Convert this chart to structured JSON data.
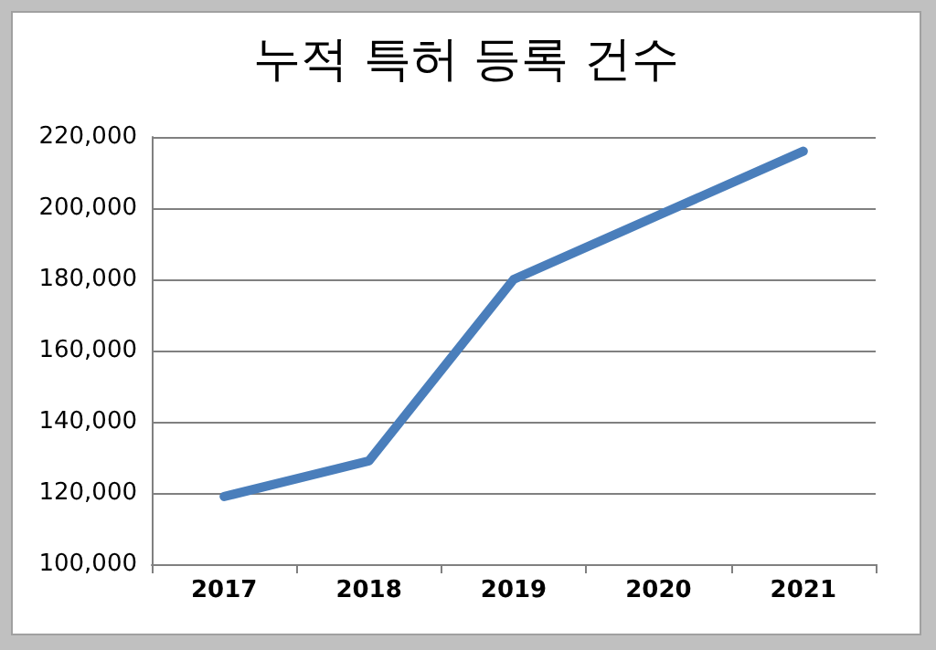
{
  "chart_data": {
    "type": "line",
    "title": "누적 특허 등록 건수",
    "categories": [
      "2017",
      "2018",
      "2019",
      "2020",
      "2021"
    ],
    "series": [
      {
        "color": "#4a7ebb",
        "values": [
          119000,
          129000,
          180000,
          198000,
          216000
        ]
      }
    ],
    "ylim": [
      100000,
      220000
    ],
    "yticks": [
      {
        "value": 100000,
        "label": "100,000"
      },
      {
        "value": 120000,
        "label": "120,000"
      },
      {
        "value": 140000,
        "label": "140,000"
      },
      {
        "value": 160000,
        "label": "160,000"
      },
      {
        "value": 180000,
        "label": "180,000"
      },
      {
        "value": 200000,
        "label": "200,000"
      },
      {
        "value": 220000,
        "label": "220,000"
      }
    ],
    "grid": "y",
    "marker": "none",
    "line_style": "solid"
  }
}
